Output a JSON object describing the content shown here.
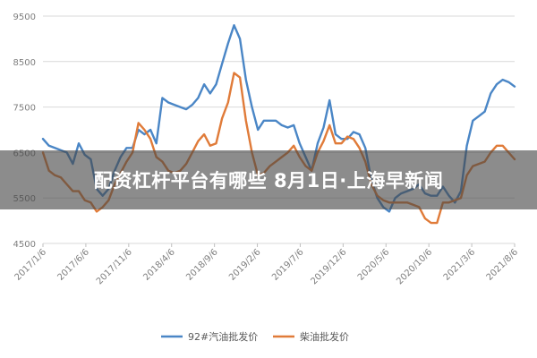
{
  "chart_data": {
    "type": "line",
    "title": "",
    "xlabel": "",
    "ylabel": "",
    "ylim": [
      4500,
      9500
    ],
    "yticks": [
      "9500",
      "8500",
      "7500",
      "6500",
      "5500",
      "4500"
    ],
    "xticks": [
      "2017/1/6",
      "2017/6/6",
      "2017/11/6",
      "2018/4/6",
      "2018/9/6",
      "2019/2/6",
      "2019/7/6",
      "2019/12/6",
      "2020/5/6",
      "2020/10/6",
      "2021/3/6",
      "2021/8/6"
    ],
    "grid": true,
    "legend": "bottom",
    "series": [
      {
        "name": "92#汽油批发价",
        "color": "#4a86c6",
        "values": [
          6800,
          6650,
          6600,
          6550,
          6500,
          6250,
          6700,
          6450,
          6350,
          5700,
          5550,
          5700,
          6100,
          6400,
          6600,
          6600,
          7000,
          6900,
          7000,
          6700,
          7700,
          7600,
          7550,
          7500,
          7450,
          7550,
          7700,
          8000,
          7800,
          8000,
          8450,
          8900,
          9300,
          9000,
          8100,
          7500,
          7000,
          7200,
          7200,
          7200,
          7100,
          7050,
          7100,
          6700,
          6400,
          6100,
          6700,
          7050,
          7650,
          6900,
          6800,
          6800,
          6950,
          6900,
          6600,
          5900,
          5500,
          5300,
          5200,
          5500,
          5600,
          5650,
          5700,
          5800,
          5600,
          5550,
          5550,
          5750,
          5550,
          5400,
          5650,
          6650,
          7200,
          7300,
          7400,
          7800,
          8000,
          8100,
          8050,
          7950
        ]
      },
      {
        "name": "柴油批发价",
        "color": "#e07b39",
        "values": [
          6500,
          6100,
          6000,
          5950,
          5800,
          5650,
          5650,
          5450,
          5400,
          5200,
          5300,
          5450,
          5800,
          6050,
          6300,
          6500,
          7150,
          7000,
          6800,
          6400,
          6300,
          6100,
          6050,
          6100,
          6250,
          6500,
          6750,
          6900,
          6650,
          6700,
          7250,
          7600,
          8250,
          8150,
          7200,
          6500,
          6000,
          6050,
          6200,
          6300,
          6400,
          6500,
          6650,
          6400,
          6200,
          6100,
          6500,
          6750,
          7100,
          6700,
          6700,
          6850,
          6800,
          6600,
          6300,
          5800,
          5550,
          5450,
          5400,
          5400,
          5400,
          5400,
          5350,
          5300,
          5050,
          4950,
          4950,
          5400,
          5400,
          5450,
          5500,
          6000,
          6200,
          6250,
          6300,
          6500,
          6650,
          6650,
          6500,
          6350
        ]
      }
    ]
  },
  "banner": {
    "text": "配资杠杆平台有哪些 8月1日·上海早新闻"
  }
}
